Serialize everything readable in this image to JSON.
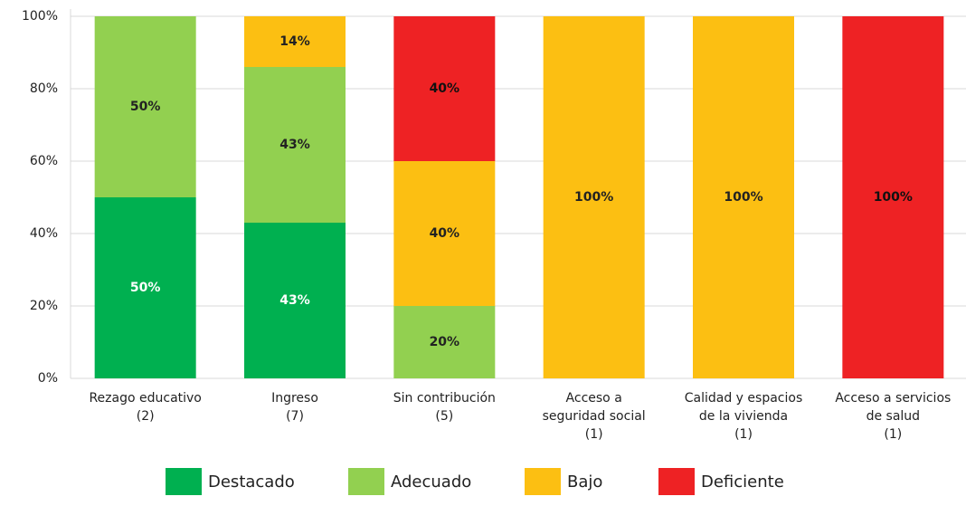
{
  "chart_data": {
    "type": "stacked_bar",
    "categories": [
      [
        "Rezago educativo",
        "(2)"
      ],
      [
        "Ingreso",
        "(7)"
      ],
      [
        "Sin contribución",
        "(5)"
      ],
      [
        "Acceso a",
        "seguridad social",
        "(1)"
      ],
      [
        "Calidad y espacios",
        "de la vivienda",
        "(1)"
      ],
      [
        "Acceso a servicios",
        "de salud",
        "(1)"
      ]
    ],
    "series": [
      {
        "name": "Destacado",
        "color": "#00b050",
        "values": [
          50,
          43,
          0,
          0,
          0,
          0
        ],
        "value_labels": [
          "50%",
          "43%",
          null,
          null,
          null,
          null
        ]
      },
      {
        "name": "Adecuado",
        "color": "#92d050",
        "values": [
          50,
          43,
          20,
          0,
          0,
          0
        ],
        "value_labels": [
          "50%",
          "43%",
          "20%",
          null,
          null,
          null
        ]
      },
      {
        "name": "Bajo",
        "color": "#fcbf12",
        "values": [
          0,
          14,
          40,
          100,
          100,
          0
        ],
        "value_labels": [
          null,
          "14%",
          "40%",
          "100%",
          "100%",
          null
        ]
      },
      {
        "name": "Deficiente",
        "color": "#ee2224",
        "values": [
          0,
          0,
          40,
          0,
          0,
          100
        ],
        "value_labels": [
          null,
          null,
          "40%",
          null,
          null,
          "100%"
        ]
      }
    ],
    "ylim": [
      0,
      100
    ],
    "yticks": [
      {
        "value": 0,
        "label": "0%"
      },
      {
        "value": 20,
        "label": "20%"
      },
      {
        "value": 40,
        "label": "40%"
      },
      {
        "value": 60,
        "label": "60%"
      },
      {
        "value": 80,
        "label": "80%"
      },
      {
        "value": 100,
        "label": "100%"
      }
    ],
    "grid": true,
    "legend": "bottom"
  }
}
